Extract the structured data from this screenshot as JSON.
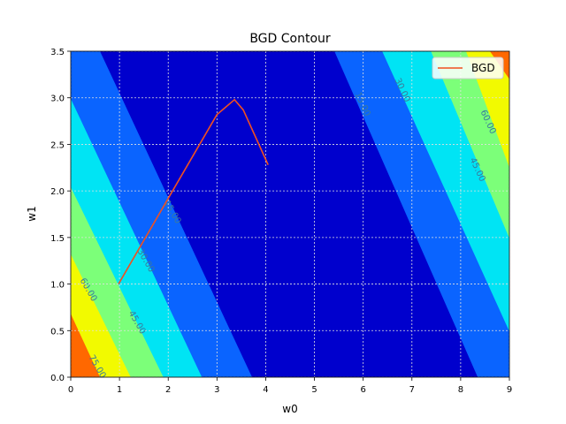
{
  "chart_data": {
    "type": "contour",
    "title": "BGD Contour",
    "x_label": "w0",
    "y_label": "w1",
    "xlim": [
      0,
      9
    ],
    "ylim": [
      0,
      3.5
    ],
    "xticks": [
      0,
      1,
      2,
      3,
      4,
      5,
      6,
      7,
      8,
      9
    ],
    "yticks": [
      {
        "value": 0,
        "label": "0.0"
      },
      {
        "value": 0.5,
        "label": "0.5"
      },
      {
        "value": 1,
        "label": "1.0"
      },
      {
        "value": 1.5,
        "label": "1.5"
      },
      {
        "value": 2,
        "label": "2.0"
      },
      {
        "value": 2.5,
        "label": "2.5"
      },
      {
        "value": 3,
        "label": "3.0"
      },
      {
        "value": 3.5,
        "label": "3.5"
      }
    ],
    "grid": true,
    "legend": "upper right",
    "levels": [
      {
        "value": 0,
        "color": "#0000cd",
        "polygons": [
          [
            [
              0,
              0
            ],
            [
              9,
              0
            ],
            [
              9,
              3.5
            ],
            [
              0,
              3.5
            ]
          ]
        ]
      },
      {
        "value": 15,
        "color": "#0a64ff",
        "polygons": [
          [
            [
              0,
              3.5
            ],
            [
              0.6,
              3.5
            ],
            [
              3.72,
              0
            ],
            [
              0,
              0
            ]
          ],
          [
            [
              5.41,
              3.5
            ],
            [
              9,
              3.5
            ],
            [
              9,
              0
            ],
            [
              8.35,
              0
            ]
          ]
        ]
      },
      {
        "value": 30,
        "color": "#00e4f4",
        "polygons": [
          [
            [
              0,
              2.99
            ],
            [
              2.69,
              0
            ],
            [
              0,
              0
            ]
          ],
          [
            [
              6.39,
              3.5
            ],
            [
              9,
              3.5
            ],
            [
              9,
              0.49
            ]
          ]
        ]
      },
      {
        "value": 45,
        "color": "#7cff79",
        "polygons": [
          [
            [
              0,
              2.04
            ],
            [
              1.9,
              0
            ],
            [
              0,
              0
            ]
          ],
          [
            [
              7.39,
              3.5
            ],
            [
              9,
              3.5
            ],
            [
              9,
              1.49
            ]
          ]
        ]
      },
      {
        "value": 60,
        "color": "#f2fa00",
        "polygons": [
          [
            [
              0,
              1.32
            ],
            [
              1.23,
              0
            ],
            [
              0,
              0
            ]
          ],
          [
            [
              8.11,
              3.5
            ],
            [
              9,
              3.5
            ],
            [
              9,
              2.25
            ]
          ]
        ]
      },
      {
        "value": 75,
        "color": "#ff6800",
        "polygons": [
          [
            [
              0,
              0.68
            ],
            [
              0.6,
              0
            ],
            [
              0,
              0
            ]
          ],
          [
            [
              8.6,
              3.5
            ],
            [
              9,
              3.5
            ],
            [
              9,
              3.2
            ]
          ]
        ]
      }
    ],
    "level_labels": [
      {
        "value": 15,
        "label": "15.00"
      },
      {
        "value": 30,
        "label": "30.00"
      },
      {
        "value": 45,
        "label": "45.00"
      },
      {
        "value": 60,
        "label": "60.00"
      },
      {
        "value": 75,
        "label": "75.00"
      }
    ],
    "series": [
      {
        "name": "BGD",
        "color": "#f05020",
        "x": [
          0.98,
          2.0,
          3.0,
          3.36,
          3.54,
          4.05
        ],
        "values": [
          1.0,
          1.92,
          2.82,
          2.98,
          2.87,
          2.28
        ]
      }
    ]
  }
}
